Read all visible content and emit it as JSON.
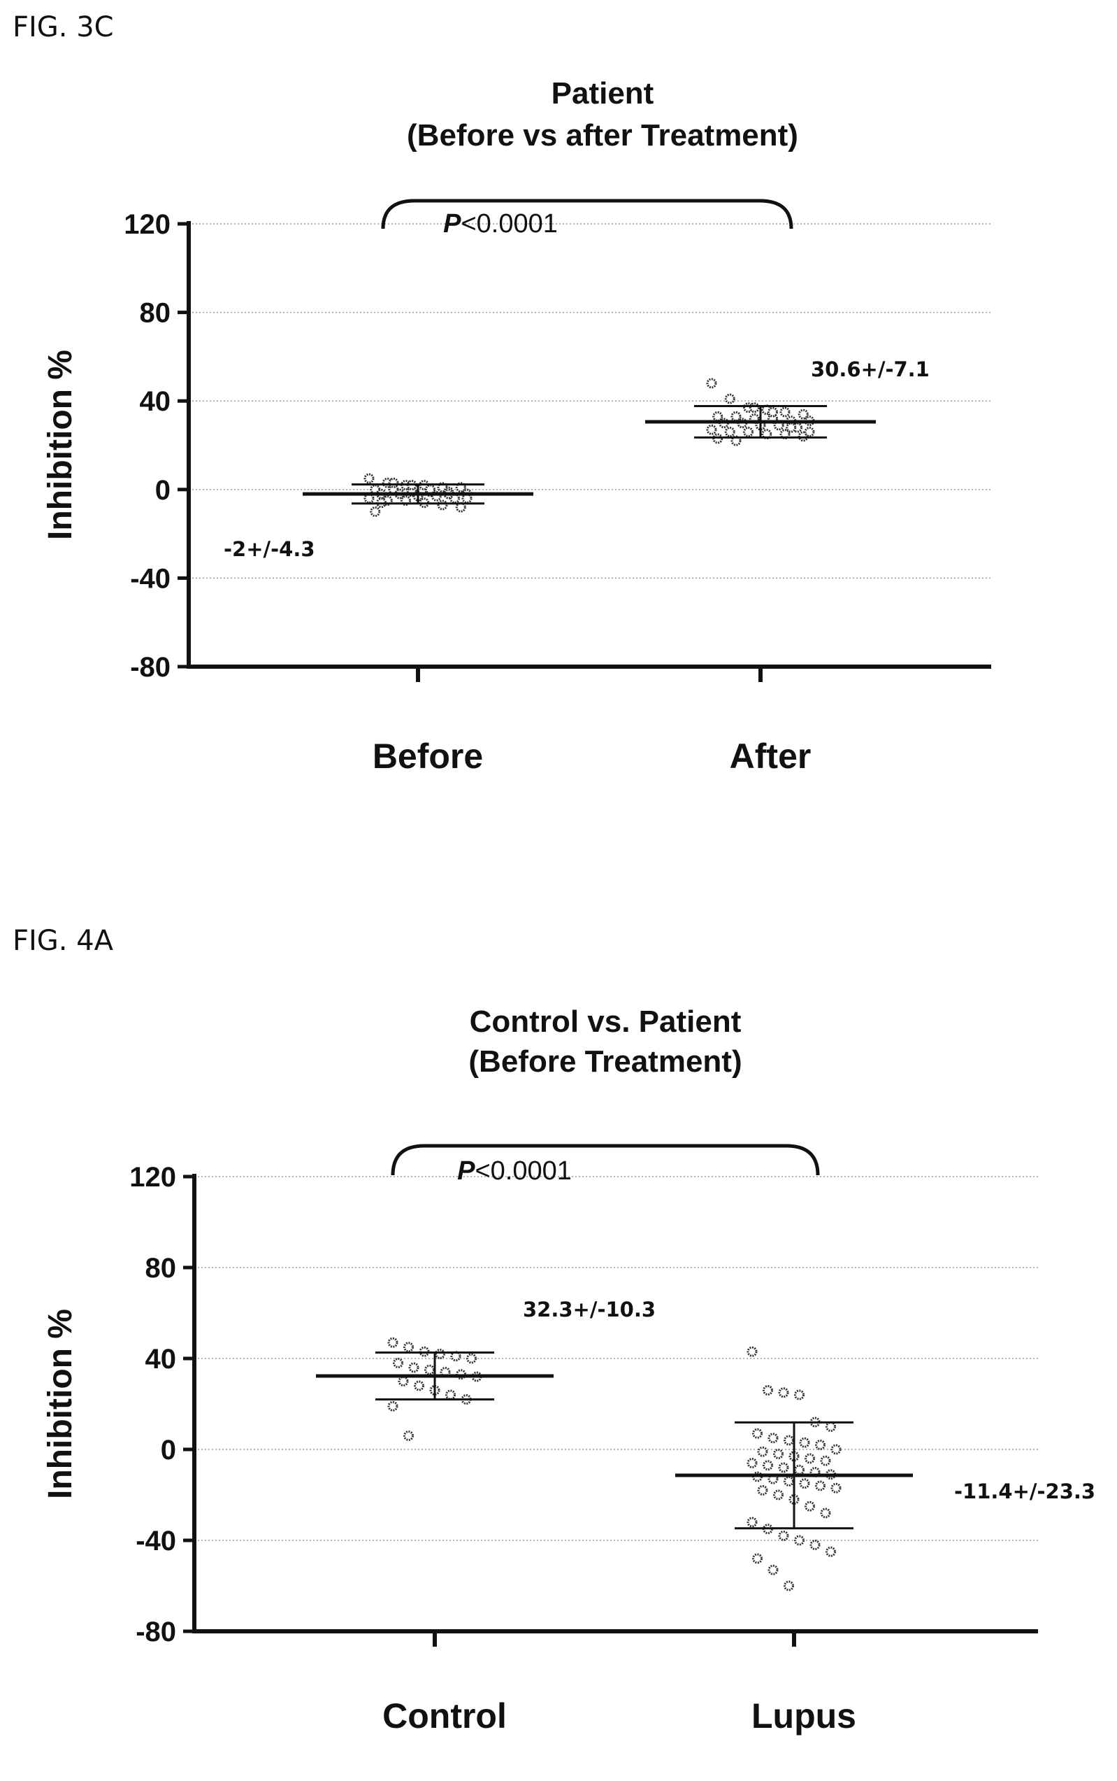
{
  "chart_data": [
    {
      "figure_label": "FIG. 3C",
      "type": "scatter",
      "title": "Patient",
      "subtitle": "(Before vs after Treatment)",
      "ylabel": "Inhibition %",
      "ylim": [
        -80,
        120
      ],
      "yticks": [
        "120",
        "80",
        "40",
        "0",
        "-40",
        "-80"
      ],
      "grid": "dotted-horizontal",
      "p_value_prefix": "P",
      "p_value_rest": "<0.0001",
      "categories": [
        "Before",
        "After"
      ],
      "series": [
        {
          "category": "Before",
          "mean": -2,
          "sd": 4.3,
          "annotation": "-2+/-4.3",
          "points": [
            5,
            3,
            2,
            2,
            1,
            1,
            0,
            0,
            -1,
            -1,
            -1,
            -2,
            -2,
            -2,
            -3,
            -3,
            -4,
            -4,
            -5,
            -5,
            -6,
            -7,
            -8,
            -10,
            3,
            2,
            0,
            -2,
            -4,
            -6
          ]
        },
        {
          "category": "After",
          "mean": 30.6,
          "sd": 7.1,
          "annotation": "30.6+/-7.1",
          "points": [
            48,
            41,
            37,
            36,
            35,
            34,
            33,
            33,
            32,
            32,
            31,
            31,
            30,
            30,
            29,
            29,
            28,
            27,
            26,
            26,
            25,
            25,
            24,
            23,
            22,
            37,
            35,
            28,
            26
          ]
        }
      ]
    },
    {
      "figure_label": "FIG. 4A",
      "type": "scatter",
      "title": "Control vs. Patient",
      "subtitle": "(Before Treatment)",
      "ylabel": "Inhibition %",
      "ylim": [
        -80,
        120
      ],
      "yticks": [
        "120",
        "80",
        "40",
        "0",
        "-40",
        "-80"
      ],
      "grid": "dotted-horizontal",
      "p_value_prefix": "P",
      "p_value_rest": "<0.0001",
      "categories": [
        "Control",
        "Lupus"
      ],
      "series": [
        {
          "category": "Control",
          "mean": 32.3,
          "sd": 10.3,
          "annotation": "32.3+/-10.3",
          "points": [
            47,
            45,
            43,
            42,
            41,
            40,
            38,
            36,
            35,
            34,
            33,
            32,
            30,
            28,
            26,
            24,
            22,
            19,
            6
          ]
        },
        {
          "category": "Lupus",
          "mean": -11.4,
          "sd": 23.3,
          "annotation": "-11.4+/-23.3",
          "points": [
            43,
            26,
            25,
            24,
            12,
            10,
            7,
            5,
            4,
            3,
            2,
            0,
            -1,
            -2,
            -3,
            -4,
            -5,
            -6,
            -7,
            -8,
            -9,
            -10,
            -11,
            -12,
            -13,
            -14,
            -15,
            -16,
            -17,
            -18,
            -20,
            -22,
            -25,
            -28,
            -32,
            -35,
            -38,
            -40,
            -42,
            -45,
            -48,
            -53,
            -60
          ]
        }
      ]
    }
  ]
}
